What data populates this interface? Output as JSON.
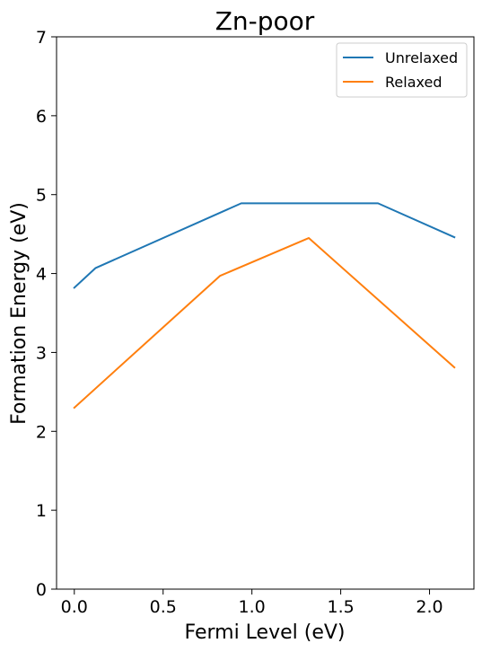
{
  "chart_data": {
    "type": "line",
    "title": "Zn-poor",
    "xlabel": "Fermi Level (eV)",
    "ylabel": "Formation Energy (eV)",
    "xlim": [
      -0.1,
      2.25
    ],
    "ylim": [
      0,
      7
    ],
    "xticks": [
      "0.0",
      "0.5",
      "1.0",
      "1.5",
      "2.0"
    ],
    "yticks": [
      "0",
      "1",
      "2",
      "3",
      "4",
      "5",
      "6",
      "7"
    ],
    "grid": false,
    "legend_position": "top-right",
    "series": [
      {
        "name": "Unrelaxed",
        "color": "#1f77b4",
        "points": [
          [
            0.0,
            3.82
          ],
          [
            0.12,
            4.07
          ],
          [
            0.94,
            4.89
          ],
          [
            1.71,
            4.89
          ],
          [
            2.14,
            4.46
          ]
        ]
      },
      {
        "name": "Relaxed",
        "color": "#ff7f0e",
        "points": [
          [
            0.0,
            2.3
          ],
          [
            0.82,
            3.97
          ],
          [
            1.32,
            4.45
          ],
          [
            2.14,
            2.81
          ]
        ]
      }
    ]
  }
}
